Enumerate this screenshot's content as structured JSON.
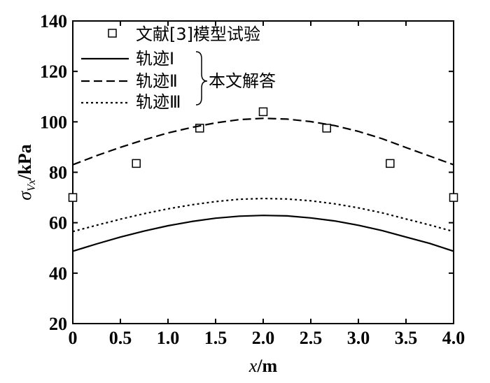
{
  "chart_data": {
    "type": "line",
    "xlabel": {
      "var": "x",
      "unit": "/m"
    },
    "ylabel": {
      "sym": "σ",
      "sub": "Vx",
      "unit": "/kPa"
    },
    "xlim": [
      0,
      4.0
    ],
    "ylim": [
      20,
      140
    ],
    "xticks": [
      "0",
      "0.5",
      "1.0",
      "1.5",
      "2.0",
      "2.5",
      "3.0",
      "3.5",
      "4.0"
    ],
    "yticks": [
      "20",
      "40",
      "60",
      "80",
      "100",
      "120",
      "140"
    ],
    "legend_group_label": "本文解答",
    "series": [
      {
        "name": "文献[3]模型试验",
        "style": "marker-square",
        "x": [
          0,
          0.667,
          1.333,
          2.0,
          2.667,
          3.333,
          4.0
        ],
        "y": [
          70,
          83.5,
          97.5,
          104,
          97.5,
          83.5,
          70
        ]
      },
      {
        "name": "轨迹Ⅰ",
        "style": "solid",
        "x": [
          0,
          0.25,
          0.5,
          0.75,
          1.0,
          1.25,
          1.5,
          1.75,
          2.0,
          2.25,
          2.5,
          2.75,
          3.0,
          3.25,
          3.5,
          3.75,
          4.0
        ],
        "y": [
          48.7,
          51.6,
          54.3,
          56.7,
          58.8,
          60.5,
          61.8,
          62.6,
          62.9,
          62.7,
          61.9,
          60.7,
          59.0,
          56.9,
          54.3,
          51.8,
          48.7
        ]
      },
      {
        "name": "轨迹Ⅱ",
        "style": "dashed",
        "x": [
          0,
          0.25,
          0.5,
          0.75,
          1.0,
          1.25,
          1.5,
          1.75,
          2.0,
          2.25,
          2.5,
          2.75,
          3.0,
          3.25,
          3.5,
          3.75,
          4.0
        ],
        "y": [
          83.0,
          86.6,
          89.9,
          92.9,
          95.6,
          97.8,
          99.6,
          100.9,
          101.4,
          101.1,
          100.1,
          98.5,
          96.2,
          93.3,
          89.8,
          86.4,
          83.0
        ]
      },
      {
        "name": "轨迹Ⅲ",
        "style": "dotted",
        "x": [
          0,
          0.25,
          0.5,
          0.75,
          1.0,
          1.25,
          1.5,
          1.75,
          2.0,
          2.25,
          2.5,
          2.75,
          3.0,
          3.25,
          3.5,
          3.75,
          4.0
        ],
        "y": [
          56.5,
          59.0,
          61.4,
          63.6,
          65.5,
          67.1,
          68.4,
          69.3,
          69.6,
          69.4,
          68.7,
          67.5,
          65.9,
          63.9,
          61.5,
          59.1,
          56.5
        ]
      }
    ]
  }
}
